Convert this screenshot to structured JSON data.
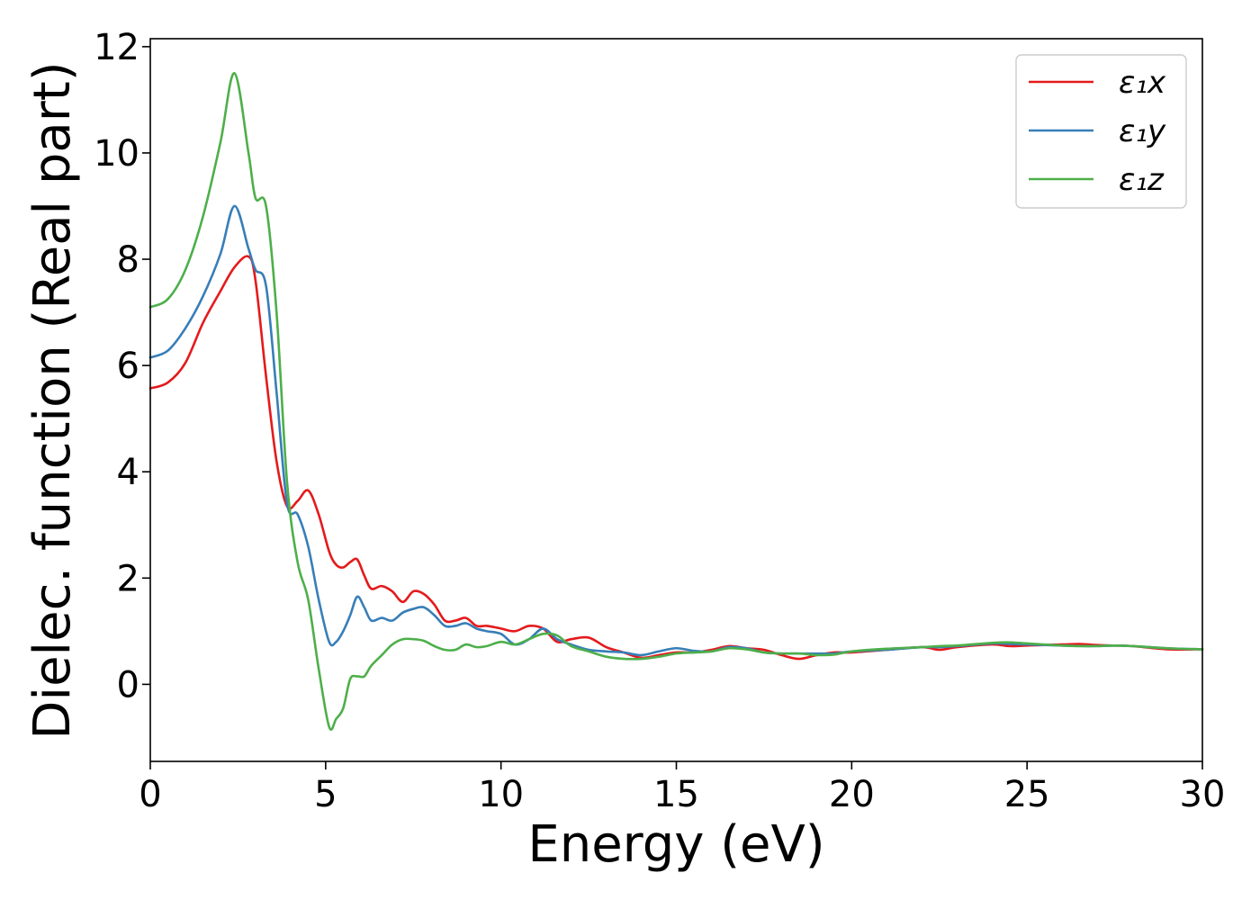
{
  "chart_data": {
    "type": "line",
    "xlabel": "Energy (eV)",
    "ylabel": "Dielec. function (Real part)",
    "xlim": [
      0,
      30
    ],
    "ylim": [
      -1.45,
      12.15
    ],
    "xticks": [
      0,
      5,
      10,
      15,
      20,
      25,
      30
    ],
    "yticks": [
      0,
      2,
      4,
      6,
      8,
      10,
      12
    ],
    "grid": false,
    "legend": "top-right",
    "x": [
      0,
      0.5,
      1,
      1.5,
      2,
      2.4,
      2.8,
      3.0,
      3.3,
      3.6,
      3.9,
      4.2,
      4.5,
      4.8,
      5.1,
      5.3,
      5.5,
      5.7,
      5.9,
      6.1,
      6.3,
      6.6,
      6.9,
      7.2,
      7.5,
      7.8,
      8.1,
      8.4,
      8.7,
      9.0,
      9.3,
      9.6,
      10.0,
      10.4,
      10.8,
      11.2,
      11.6,
      12.0,
      12.5,
      13.0,
      13.5,
      14.0,
      14.5,
      15.0,
      15.5,
      16.0,
      16.5,
      17.0,
      17.5,
      18.0,
      18.5,
      19.0,
      19.5,
      20.0,
      21.0,
      22.0,
      22.5,
      23.0,
      24.0,
      24.5,
      25.0,
      26.0,
      26.5,
      27.0,
      27.5,
      28.0,
      29.0,
      30.0
    ],
    "series": [
      {
        "name": "ε₁x",
        "color": "#e41a1c",
        "values": [
          5.57,
          5.68,
          6.05,
          6.8,
          7.4,
          7.85,
          8.05,
          7.6,
          5.8,
          4.2,
          3.35,
          3.45,
          3.65,
          3.2,
          2.5,
          2.25,
          2.2,
          2.3,
          2.35,
          2.05,
          1.8,
          1.85,
          1.75,
          1.55,
          1.75,
          1.7,
          1.5,
          1.2,
          1.2,
          1.25,
          1.1,
          1.1,
          1.05,
          1.0,
          1.1,
          1.05,
          0.8,
          0.85,
          0.88,
          0.7,
          0.6,
          0.5,
          0.55,
          0.6,
          0.6,
          0.65,
          0.72,
          0.68,
          0.65,
          0.55,
          0.48,
          0.55,
          0.6,
          0.6,
          0.65,
          0.7,
          0.65,
          0.7,
          0.75,
          0.72,
          0.73,
          0.75,
          0.76,
          0.74,
          0.73,
          0.72,
          0.66,
          0.66
        ]
      },
      {
        "name": "ε₁y",
        "color": "#377eb8",
        "values": [
          6.15,
          6.28,
          6.7,
          7.3,
          8.1,
          9.0,
          8.2,
          7.8,
          7.5,
          5.5,
          3.4,
          3.2,
          2.6,
          1.6,
          0.8,
          0.8,
          1.0,
          1.3,
          1.65,
          1.45,
          1.2,
          1.25,
          1.2,
          1.35,
          1.42,
          1.45,
          1.3,
          1.1,
          1.1,
          1.15,
          1.05,
          1.0,
          0.95,
          0.75,
          0.85,
          1.05,
          0.85,
          0.75,
          0.65,
          0.62,
          0.6,
          0.55,
          0.62,
          0.68,
          0.63,
          0.62,
          0.7,
          0.68,
          0.6,
          0.58,
          0.58,
          0.58,
          0.58,
          0.62,
          0.65,
          0.7,
          0.7,
          0.72,
          0.77,
          0.76,
          0.75,
          0.73,
          0.72,
          0.72,
          0.73,
          0.72,
          0.68,
          0.66
        ]
      },
      {
        "name": "ε₁z",
        "color": "#4daf4a",
        "values": [
          7.1,
          7.25,
          7.8,
          8.8,
          10.2,
          11.5,
          10.0,
          9.15,
          9.0,
          7.0,
          3.8,
          2.3,
          1.6,
          0.3,
          -0.8,
          -0.65,
          -0.45,
          0.1,
          0.15,
          0.15,
          0.35,
          0.55,
          0.75,
          0.85,
          0.85,
          0.82,
          0.72,
          0.65,
          0.65,
          0.75,
          0.7,
          0.72,
          0.8,
          0.75,
          0.85,
          0.95,
          0.92,
          0.72,
          0.62,
          0.52,
          0.48,
          0.48,
          0.52,
          0.58,
          0.6,
          0.62,
          0.68,
          0.66,
          0.6,
          0.58,
          0.58,
          0.55,
          0.56,
          0.62,
          0.67,
          0.7,
          0.72,
          0.73,
          0.78,
          0.79,
          0.77,
          0.73,
          0.72,
          0.72,
          0.73,
          0.72,
          0.68,
          0.66
        ]
      }
    ]
  }
}
